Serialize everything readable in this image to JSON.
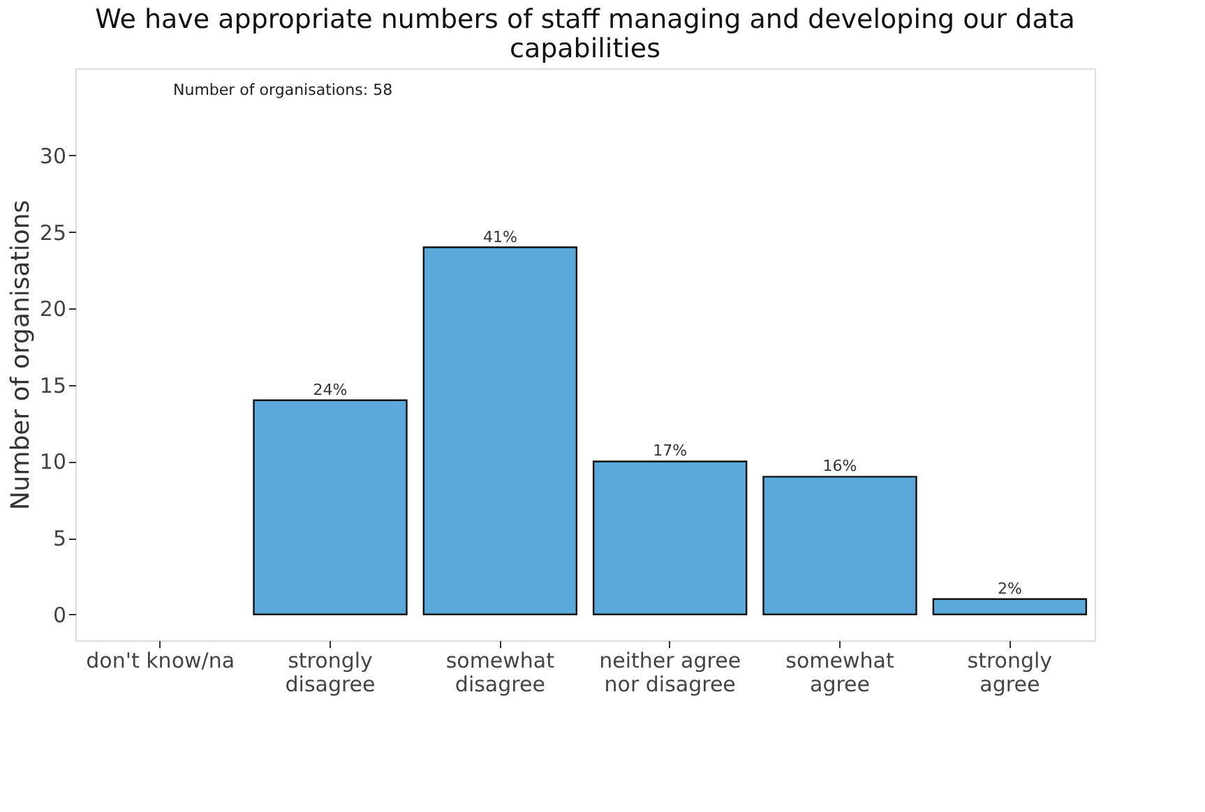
{
  "chart_data": {
    "type": "bar",
    "title": "We have appropriate numbers of staff managing and developing our data capabilities",
    "ylabel": "Number of organisations",
    "categories": [
      "don't know/na",
      "strongly disagree",
      "somewhat disagree",
      "neither agree nor disagree",
      "somewhat agree",
      "strongly agree"
    ],
    "values": [
      null,
      14,
      24,
      10,
      9,
      1
    ],
    "color": "#5ba8db",
    "ylim": [
      -1.7,
      35.7
    ],
    "yticks": [
      0,
      5,
      10,
      15,
      20,
      25,
      30
    ],
    "grid": false,
    "annotations": [
      "Number of organisations: 58",
      {
        "text": "24%",
        "x": "strongly disagree",
        "y": 14
      },
      {
        "text": "41%",
        "x": "somewhat disagree",
        "y": 24
      },
      {
        "text": "17%",
        "x": "neither agree nor disagree",
        "y": 10
      },
      {
        "text": "16%",
        "x": "somewhat agree",
        "y": 9
      },
      {
        "text": "2%",
        "x": "strongly agree",
        "y": 1
      }
    ]
  }
}
